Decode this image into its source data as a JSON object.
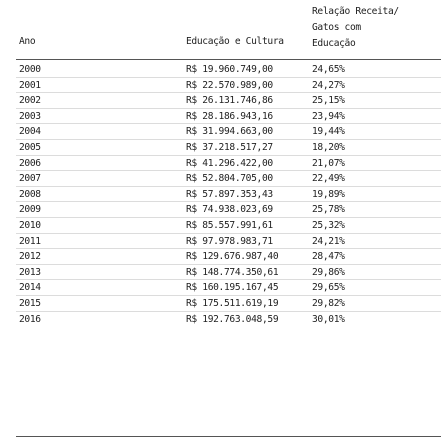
{
  "table": {
    "headers": {
      "ano": "Ano",
      "educacao": "Educação e Cultura",
      "relacao": "Relação Receita/\nGatos com\nEducação"
    },
    "rows": [
      {
        "ano": "2000",
        "educacao": "R$ 19.960.749,00",
        "relacao": "24,65%"
      },
      {
        "ano": "2001",
        "educacao": "R$ 22.570.989,00",
        "relacao": "24,27%"
      },
      {
        "ano": "2002",
        "educacao": "R$ 26.131.746,86",
        "relacao": "25,15%"
      },
      {
        "ano": "2003",
        "educacao": "R$ 28.186.943,16",
        "relacao": "23,94%"
      },
      {
        "ano": "2004",
        "educacao": "R$ 31.994.663,00",
        "relacao": "19,44%"
      },
      {
        "ano": "2005",
        "educacao": "R$ 37.218.517,27",
        "relacao": "18,20%"
      },
      {
        "ano": "2006",
        "educacao": "R$ 41.296.422,00",
        "relacao": "21,07%"
      },
      {
        "ano": "2007",
        "educacao": "R$ 52.804.705,00",
        "relacao": "22,49%"
      },
      {
        "ano": "2008",
        "educacao": "R$ 57.897.353,43",
        "relacao": "19,89%"
      },
      {
        "ano": "2009",
        "educacao": "R$ 74.938.023,69",
        "relacao": "25,78%"
      },
      {
        "ano": "2010",
        "educacao": "R$ 85.557.991,61",
        "relacao": "25,32%"
      },
      {
        "ano": "2011",
        "educacao": "R$ 97.978.983,71",
        "relacao": "24,21%"
      },
      {
        "ano": "2012",
        "educacao": "R$ 129.676.987,40",
        "relacao": "28,47%"
      },
      {
        "ano": "2013",
        "educacao": "R$ 148.774.350,61",
        "relacao": "29,86%"
      },
      {
        "ano": "2014",
        "educacao": "R$ 160.195.167,45",
        "relacao": "29,65%"
      },
      {
        "ano": "2015",
        "educacao": "R$ 175.511.619,19",
        "relacao": "29,82%"
      },
      {
        "ano": "2016",
        "educacao": "R$ 192.763.048,59",
        "relacao": "30,01%"
      }
    ]
  }
}
